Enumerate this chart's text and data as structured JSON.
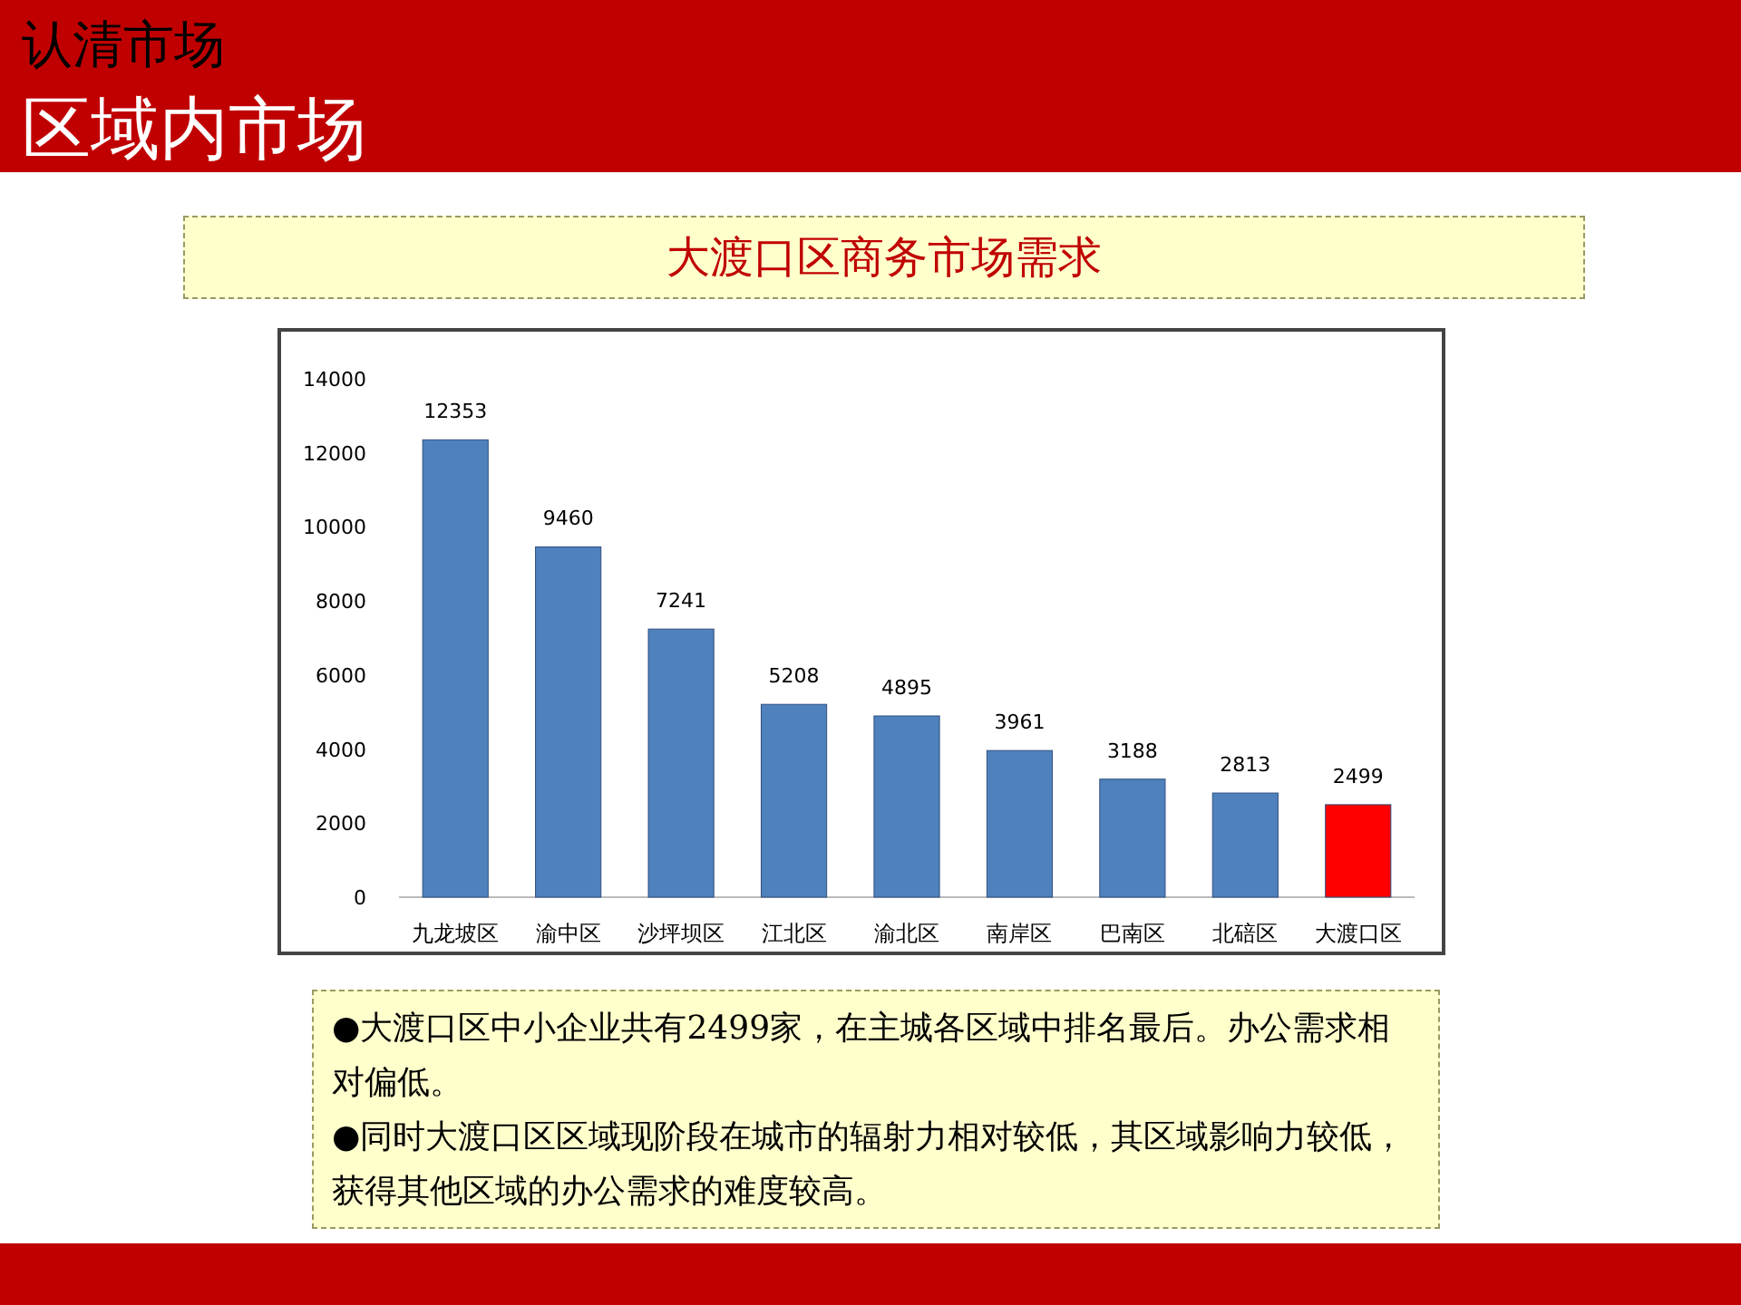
{
  "chart_data": {
    "type": "bar",
    "title": "大渡口区商务市场需求",
    "categories": [
      "九龙坡区",
      "渝中区",
      "沙坪坝区",
      "江北区",
      "渝北区",
      "南岸区",
      "巴南区",
      "北碚区",
      "大渡口区"
    ],
    "values": [
      12353,
      9460,
      7241,
      5208,
      4895,
      3961,
      3188,
      2813,
      2499
    ],
    "colors": [
      "#4f81bd",
      "#4f81bd",
      "#4f81bd",
      "#4f81bd",
      "#4f81bd",
      "#4f81bd",
      "#4f81bd",
      "#4f81bd",
      "#ff0000"
    ],
    "ylim": [
      0,
      14000
    ],
    "yticks": [
      0,
      2000,
      4000,
      6000,
      8000,
      10000,
      12000,
      14000
    ],
    "data_labels": true,
    "annotations": [
      "认清市场",
      "区域内市场",
      "●大渡口区中小企业共有2499家，在主城各区域中排名最后。办公需求相对偏低。",
      "●同时大渡口区区域现阶段在城市的辐射力相对较低，其区域影响力较低，获得其他区域的办公需求的难度较高。"
    ]
  }
}
